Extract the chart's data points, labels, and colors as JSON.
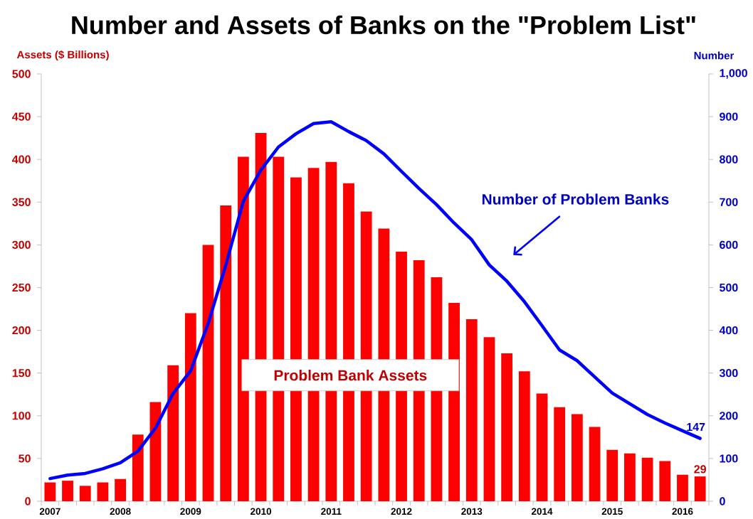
{
  "chart_data": {
    "type": "bar",
    "title": "Number and Assets of Banks on the \"Problem List\"",
    "ylabel": "Assets ($ Billions)",
    "y2label": "Number",
    "categories": [
      "2007",
      null,
      null,
      null,
      "2008",
      null,
      null,
      null,
      "2009",
      null,
      null,
      null,
      "2010",
      null,
      null,
      null,
      "2011",
      null,
      null,
      null,
      "2012",
      null,
      null,
      null,
      "2013",
      null,
      null,
      null,
      "2014",
      null,
      null,
      null,
      "2015",
      null,
      null,
      null,
      "2016",
      null
    ],
    "ylim": [
      0,
      500
    ],
    "yticks": [
      0,
      50,
      100,
      150,
      200,
      250,
      300,
      350,
      400,
      450,
      500
    ],
    "y2lim": [
      0,
      1000
    ],
    "y2ticks": [
      0,
      100,
      200,
      300,
      400,
      500,
      600,
      700,
      800,
      900,
      {
        "value": 1000,
        "label": "1,000"
      }
    ],
    "series": [
      {
        "name": "Problem Bank Assets",
        "color": "#ff0000",
        "values": [
          22,
          24,
          18,
          22,
          26,
          78,
          116,
          159,
          220,
          300,
          346,
          403,
          431,
          403,
          379,
          390,
          397,
          372,
          339,
          319,
          292,
          282,
          262,
          232,
          213,
          192,
          173,
          152,
          126,
          110,
          102,
          87,
          60,
          56,
          51,
          47,
          31,
          29
        ],
        "value_labels": [
          null,
          null,
          null,
          null,
          null,
          null,
          null,
          null,
          null,
          null,
          null,
          null,
          null,
          null,
          null,
          null,
          null,
          null,
          null,
          null,
          null,
          null,
          null,
          null,
          null,
          null,
          null,
          null,
          null,
          null,
          null,
          null,
          null,
          null,
          null,
          null,
          null,
          "29"
        ]
      },
      {
        "name": "Number of Problem Banks",
        "type": "line",
        "axis": "y2",
        "color": "#0000ff",
        "values": [
          53,
          61,
          65,
          76,
          90,
          117,
          171,
          252,
          305,
          416,
          552,
          702,
          775,
          829,
          860,
          884,
          888,
          865,
          844,
          813,
          772,
          732,
          694,
          651,
          612,
          553,
          515,
          467,
          411,
          354,
          329,
          291,
          253,
          228,
          203,
          183,
          165,
          147
        ],
        "value_labels": [
          null,
          null,
          null,
          null,
          null,
          null,
          null,
          null,
          null,
          null,
          null,
          null,
          null,
          null,
          null,
          null,
          null,
          null,
          null,
          null,
          null,
          null,
          null,
          null,
          null,
          null,
          null,
          null,
          null,
          null,
          null,
          null,
          null,
          null,
          null,
          null,
          null,
          "147"
        ]
      }
    ]
  }
}
